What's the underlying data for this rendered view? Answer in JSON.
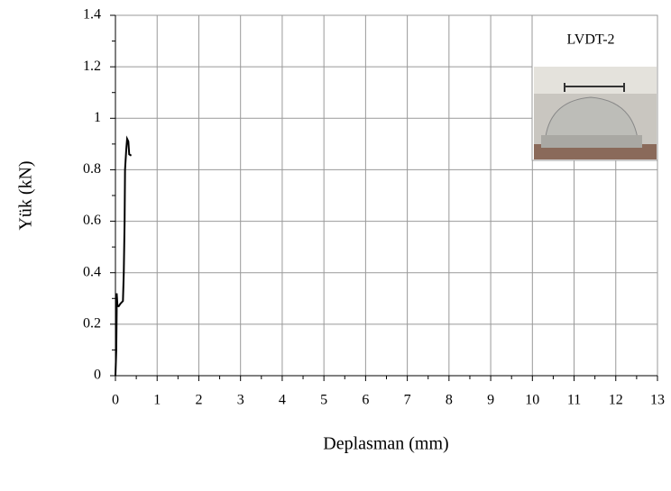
{
  "chart_data": {
    "type": "line",
    "x_label": "Deplasman (mm)",
    "y_label": "Yük (kN)",
    "annotation": "LVDT-2",
    "series": [
      {
        "color": "#000000",
        "x": [
          0,
          0.02,
          0.03,
          0.03,
          0.05,
          0.08,
          0.12,
          0.18,
          0.2,
          0.22,
          0.23,
          0.26,
          0.28,
          0.31,
          0.33,
          0.38
        ],
        "values": [
          0,
          0.1,
          0.25,
          0.32,
          0.27,
          0.27,
          0.28,
          0.29,
          0.4,
          0.6,
          0.8,
          0.88,
          0.92,
          0.91,
          0.86,
          0.855
        ]
      }
    ],
    "xlim": [
      0,
      13
    ],
    "xticks": [
      0,
      1,
      2,
      3,
      4,
      5,
      6,
      7,
      8,
      9,
      10,
      11,
      12,
      13
    ],
    "ylim": [
      0,
      1.4
    ],
    "yticks": [
      0,
      0.2,
      0.4,
      0.6,
      0.8,
      1,
      1.2,
      1.4
    ],
    "grid": true
  }
}
